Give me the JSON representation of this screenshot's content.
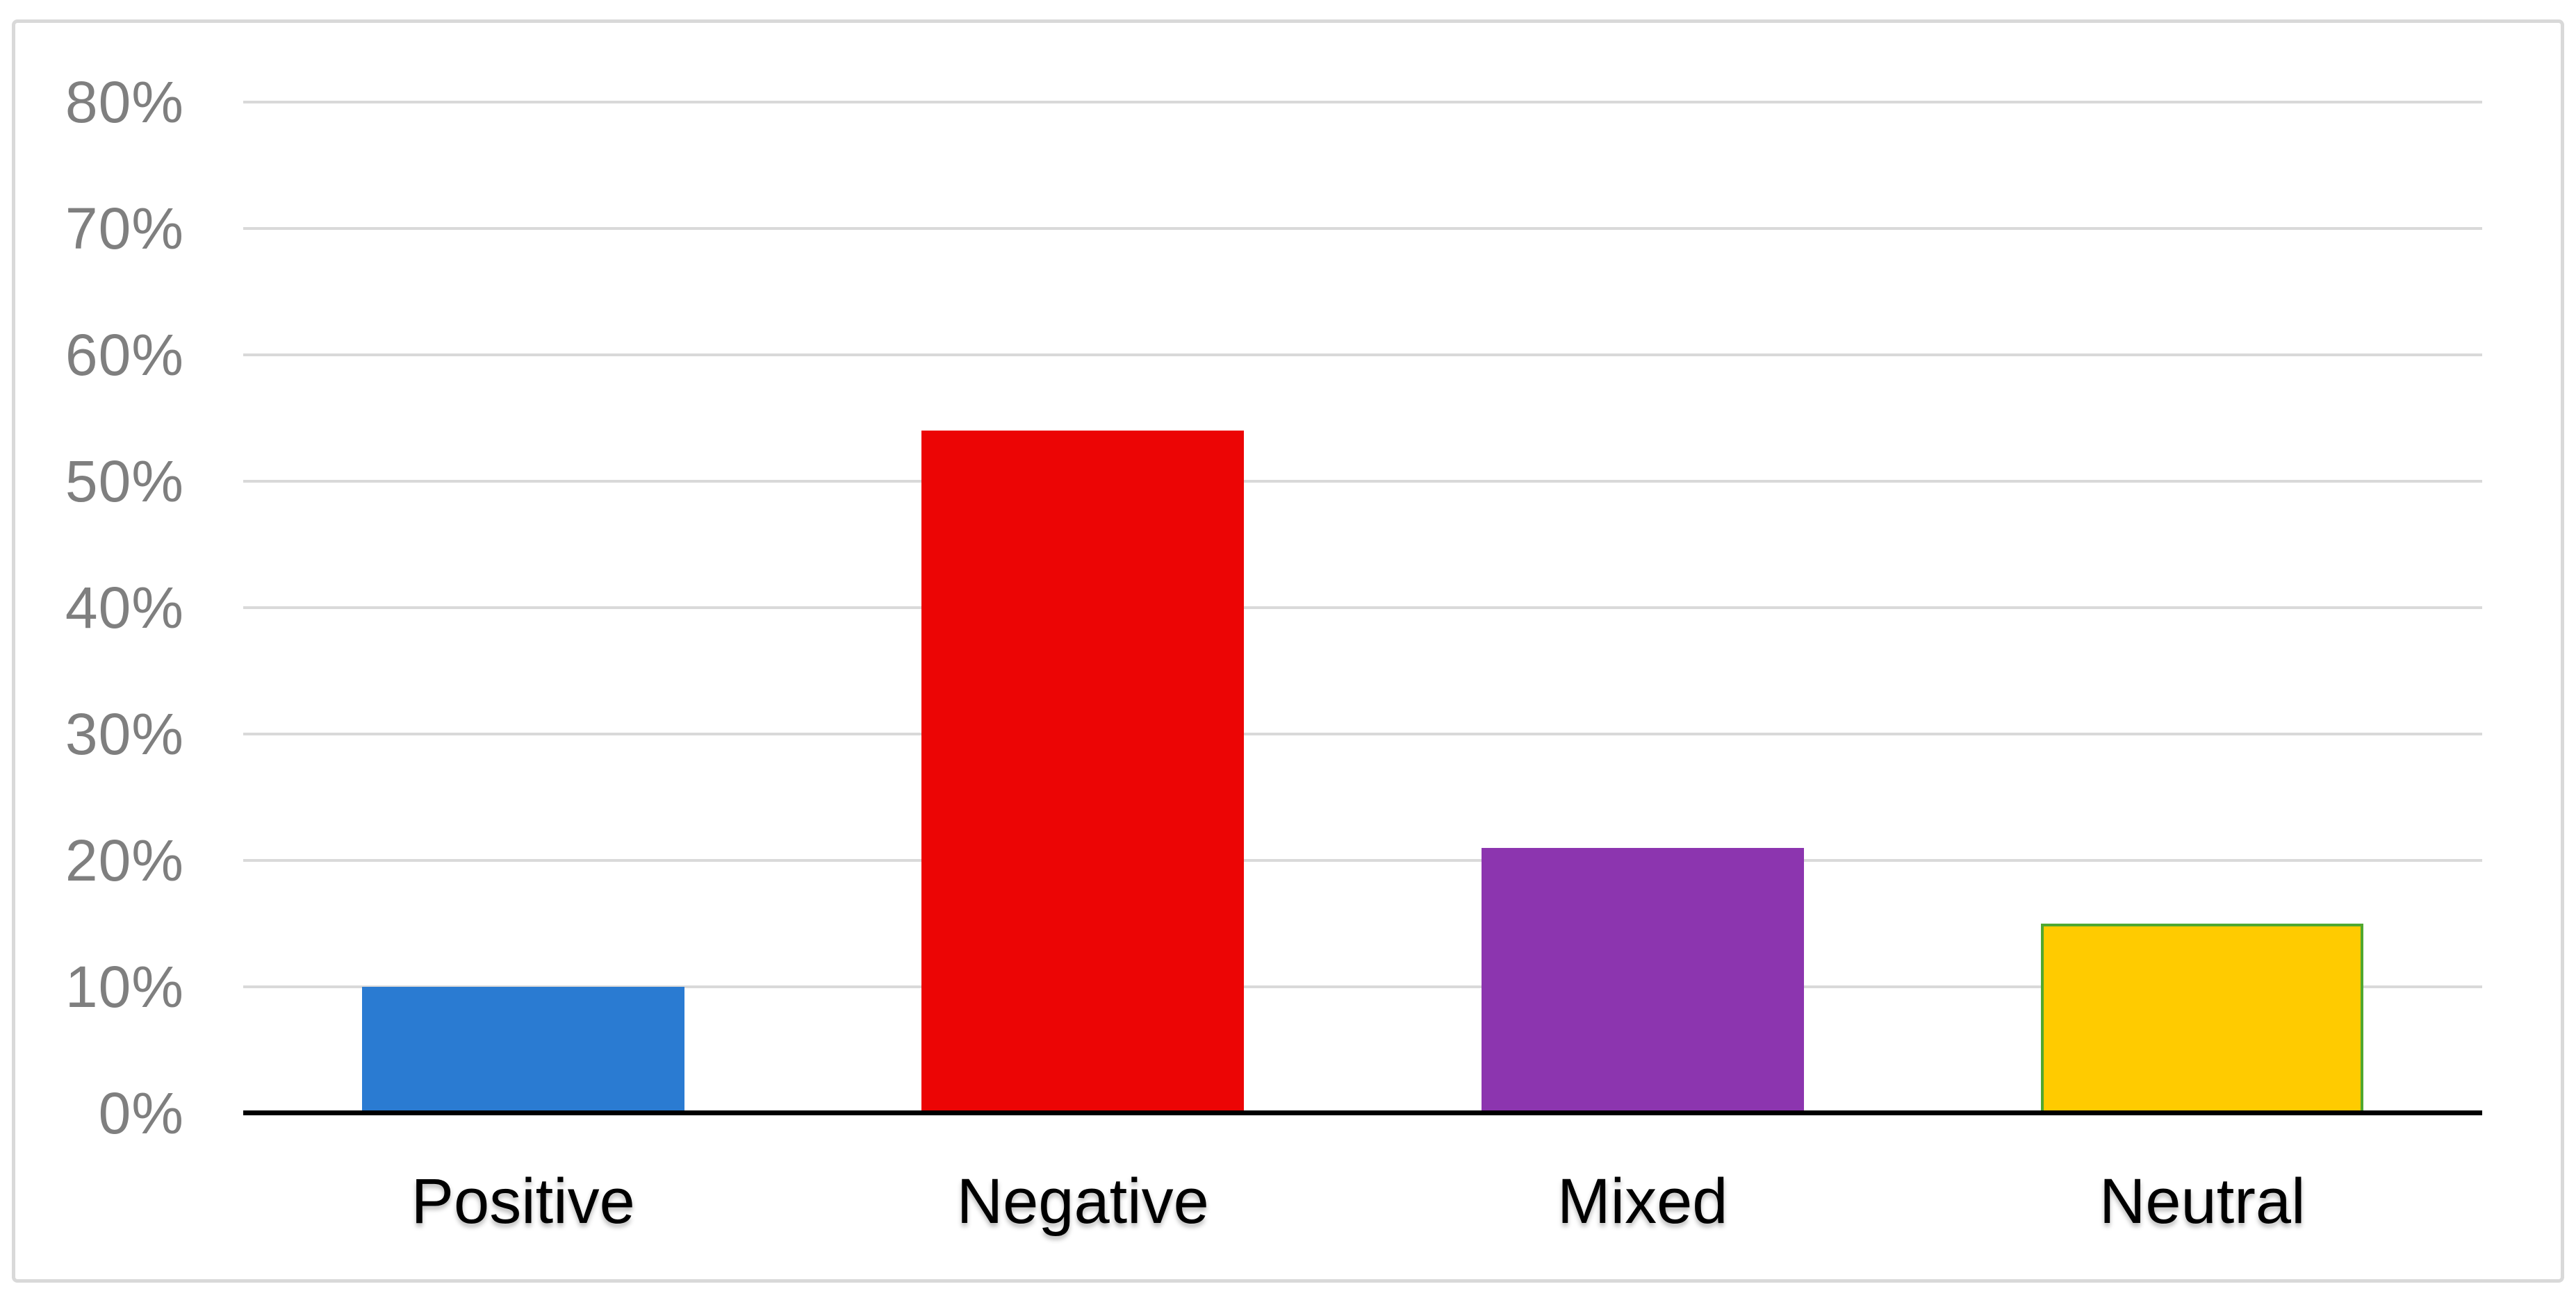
{
  "chart_data": {
    "type": "bar",
    "categories": [
      "Positive",
      "Negative",
      "Mixed",
      "Neutral"
    ],
    "values": [
      10,
      54,
      21,
      15
    ],
    "value_unit": "%",
    "ylim": [
      0,
      80
    ],
    "yticks": [
      {
        "value": 0,
        "label": "0%"
      },
      {
        "value": 10,
        "label": "10%"
      },
      {
        "value": 20,
        "label": "20%"
      },
      {
        "value": 30,
        "label": "30%"
      },
      {
        "value": 40,
        "label": "40%"
      },
      {
        "value": 50,
        "label": "50%"
      },
      {
        "value": 60,
        "label": "60%"
      },
      {
        "value": 70,
        "label": "70%"
      },
      {
        "value": 80,
        "label": "80%"
      }
    ],
    "grid": true,
    "legend": false,
    "bar_colors": [
      "#2A7BD2",
      "#EC0505",
      "#8C35AF",
      "#FFCB00"
    ],
    "bar_border_colors": [
      null,
      null,
      null,
      "#50A830"
    ],
    "colors": {
      "gridline": "#D9D9D9",
      "axis_line": "#000000",
      "tick_label": "#7F7F7F",
      "category_label": "#000000",
      "chart_border": "#D9D9D9",
      "background": "#FFFFFF"
    }
  }
}
